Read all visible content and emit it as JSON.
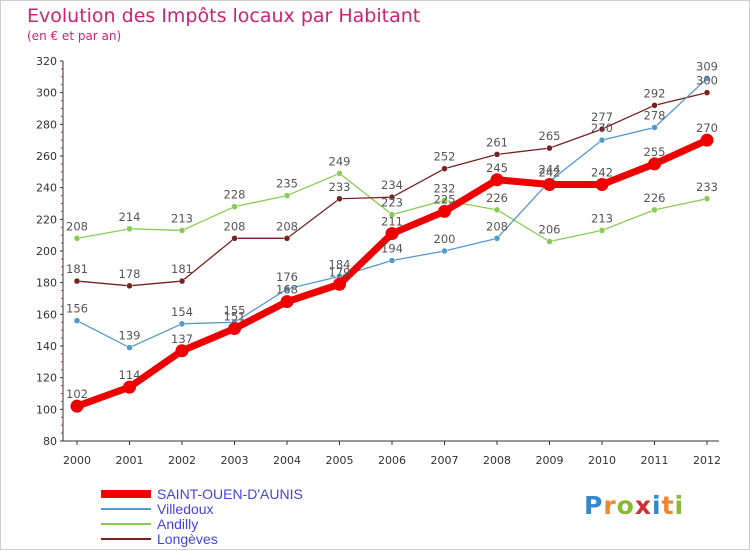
{
  "chart_data": {
    "type": "line",
    "title": "Evolution des Impôts locaux par Habitant",
    "subtitle": "(en € et par an)",
    "xlabel": "",
    "ylabel": "",
    "ylim": [
      80,
      320
    ],
    "yticks": [
      80,
      100,
      120,
      140,
      160,
      180,
      200,
      220,
      240,
      260,
      280,
      300,
      320
    ],
    "categories": [
      "2000",
      "2001",
      "2002",
      "2003",
      "2004",
      "2005",
      "2006",
      "2007",
      "2008",
      "2009",
      "2010",
      "2011",
      "2012"
    ],
    "grid": false,
    "legend_position": "bottom-left",
    "series": [
      {
        "name": "SAINT-OUEN-D'AUNIS",
        "color": "#ee0000",
        "values": [
          102,
          114,
          137,
          151,
          168,
          179,
          211,
          225,
          245,
          242,
          242,
          255,
          270
        ],
        "labels": [
          "102",
          "114",
          "137",
          "151",
          "168",
          "179",
          "211",
          "225",
          "245",
          "242",
          "242",
          "255",
          "270"
        ]
      },
      {
        "name": "Villedoux",
        "color": "#5599cc",
        "values": [
          156,
          139,
          154,
          155,
          176,
          184,
          194,
          200,
          208,
          244,
          270,
          278,
          309
        ],
        "labels": [
          "156",
          "139",
          "154",
          "155",
          "176",
          "184",
          "194",
          "200",
          "208",
          "244",
          "270",
          "278",
          "309"
        ]
      },
      {
        "name": "Andilly",
        "color": "#88cc55",
        "values": [
          208,
          214,
          213,
          228,
          235,
          249,
          223,
          232,
          226,
          206,
          213,
          226,
          233
        ],
        "labels": [
          "208",
          "214",
          "213",
          "228",
          "235",
          "249",
          "223",
          "232",
          "226",
          "206",
          "213",
          "226",
          "233"
        ]
      },
      {
        "name": "Longèves",
        "color": "#772222",
        "values": [
          181,
          178,
          181,
          208,
          208,
          233,
          234,
          252,
          261,
          265,
          277,
          292,
          300
        ],
        "labels": [
          "181",
          "178",
          "181",
          "208",
          "208",
          "233",
          "234",
          "252",
          "261",
          "265",
          "277",
          "292",
          "300"
        ]
      }
    ]
  },
  "logo": {
    "letters": [
      "P",
      "r",
      "o",
      "x",
      "i",
      "t",
      "i"
    ],
    "colors": [
      "#3388cc",
      "#ee8833",
      "#88bb33",
      "#cc3333",
      "#3388cc",
      "#ee8833",
      "#88bb33"
    ]
  }
}
